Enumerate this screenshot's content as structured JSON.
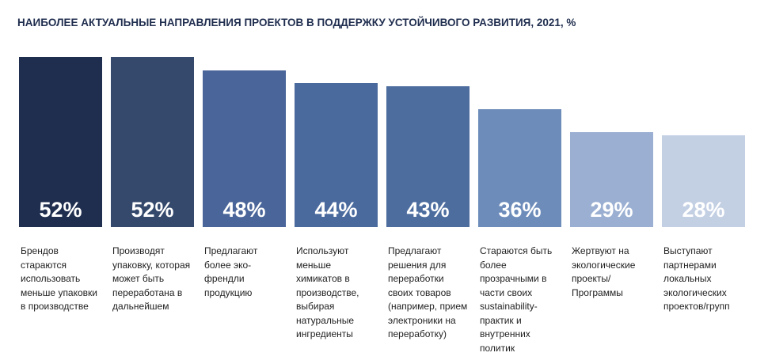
{
  "chart_data": {
    "type": "bar",
    "title": "НАИБОЛЕЕ АКТУАЛЬНЫЕ НАПРАВЛЕНИЯ ПРОЕКТОВ В ПОДДЕРЖКУ УСТОЙЧИВОГО РАЗВИТИЯ, 2021, %",
    "categories": [
      "Брендов\nстараются\nиспользовать\nменьше упаковки\nв производстве",
      "Производят\nупаковку, которая\nможет быть\nпереработана в\nдальнейшем",
      "Предлагают\nболее эко-\nфрендли\nпродукцию",
      "Используют\nменьше\nхимикатов в\nпроизводстве,\nвыбирая\nнатуральные\nингредиенты",
      "Предлагают\nрешения для\nпереработки\nсвоих товаров\n(например, прием\nэлектроники на\nпереработку)",
      "Стараются быть\nболее\nпрозрачными в\nчасти своих\nsustainability-\nпрактик и\nвнутренних\nполитик",
      "Жертвуют на\nэкологические\nпроекты/\nПрограммы",
      "Выступают\nпартнерами\nлокальных\nэкологических\nпроектов/групп"
    ],
    "values": [
      52,
      52,
      48,
      44,
      43,
      36,
      29,
      28
    ],
    "value_labels": [
      "52%",
      "52%",
      "48%",
      "44%",
      "43%",
      "36%",
      "29%",
      "28%"
    ],
    "colors": [
      "#1f2d4e",
      "#34496b",
      "#4a6599",
      "#4a6a9e",
      "#4d6d9f",
      "#6d8cba",
      "#9aafd1",
      "#c3cfe3"
    ]
  }
}
